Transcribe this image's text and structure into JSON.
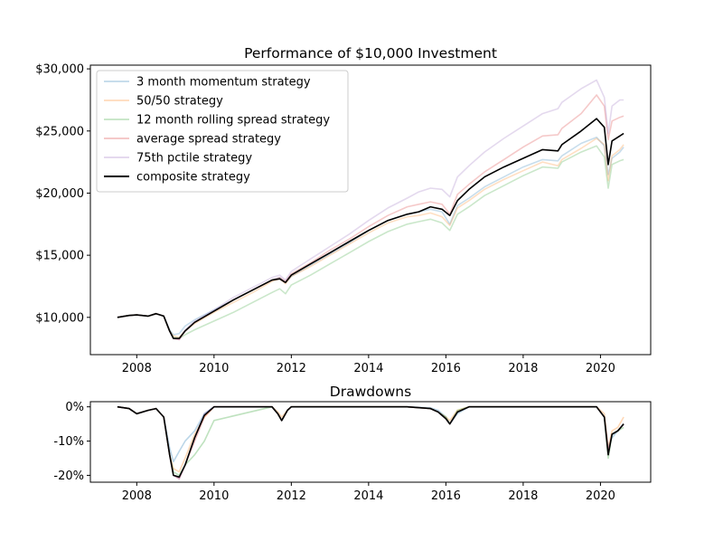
{
  "chart_data": [
    {
      "type": "line",
      "title": "Performance of $10,000 Investment",
      "xlabel": "",
      "ylabel": "",
      "xlim": [
        2006.8,
        2021.3
      ],
      "ylim": [
        7000,
        30300
      ],
      "x_ticks": [
        2008,
        2010,
        2012,
        2014,
        2016,
        2018,
        2020
      ],
      "x_tick_labels": [
        "2008",
        "2010",
        "2012",
        "2014",
        "2016",
        "2018",
        "2020"
      ],
      "y_ticks": [
        10000,
        15000,
        20000,
        25000,
        30000
      ],
      "y_tick_labels": [
        "$10,000",
        "$15,000",
        "$20,000",
        "$25,000",
        "$30,000"
      ],
      "grid": false,
      "legend_position": "top-left",
      "x": [
        2007.5,
        2007.8,
        2008.0,
        2008.3,
        2008.5,
        2008.7,
        2008.85,
        2008.95,
        2009.1,
        2009.25,
        2009.5,
        2010.0,
        2010.5,
        2011.0,
        2011.5,
        2011.7,
        2011.85,
        2012.0,
        2012.5,
        2013.0,
        2013.5,
        2014.0,
        2014.5,
        2015.0,
        2015.3,
        2015.6,
        2015.9,
        2016.1,
        2016.3,
        2016.6,
        2017.0,
        2017.5,
        2018.0,
        2018.5,
        2018.9,
        2019.0,
        2019.5,
        2019.9,
        2020.1,
        2020.2,
        2020.3,
        2020.5,
        2020.6
      ],
      "series": [
        {
          "name": "3 month momentum strategy",
          "color": "#1f77b4",
          "values": [
            10000,
            10150,
            10200,
            10100,
            10300,
            10100,
            9000,
            8600,
            8700,
            9300,
            9800,
            10600,
            11400,
            12200,
            13000,
            13200,
            12800,
            13300,
            14200,
            15100,
            16000,
            17000,
            17800,
            18300,
            18500,
            18700,
            18500,
            17500,
            19000,
            19600,
            20500,
            21300,
            22100,
            22700,
            22600,
            23000,
            24000,
            24500,
            23800,
            21500,
            22800,
            23300,
            23700
          ]
        },
        {
          "name": "50/50 strategy",
          "color": "#ff7f0e",
          "values": [
            10000,
            10150,
            10200,
            10100,
            10300,
            10100,
            8900,
            8500,
            8400,
            8900,
            9500,
            10400,
            11200,
            12000,
            12900,
            13100,
            12700,
            13300,
            14100,
            15000,
            15900,
            16800,
            17600,
            18100,
            18200,
            18400,
            18100,
            17400,
            18800,
            19400,
            20300,
            21100,
            21800,
            22500,
            22200,
            22700,
            23600,
            24400,
            23900,
            21000,
            23000,
            23500,
            23900
          ]
        },
        {
          "name": "12 month rolling spread strategy",
          "color": "#2ca02c",
          "values": [
            10000,
            10150,
            10200,
            10100,
            10300,
            10100,
            8900,
            8400,
            8300,
            8600,
            9000,
            9700,
            10400,
            11200,
            12000,
            12300,
            11900,
            12600,
            13400,
            14300,
            15200,
            16100,
            16900,
            17500,
            17700,
            17900,
            17600,
            17000,
            18300,
            18900,
            19800,
            20600,
            21400,
            22100,
            22000,
            22500,
            23300,
            23800,
            22900,
            20400,
            22300,
            22600,
            22700
          ]
        },
        {
          "name": "average spread strategy",
          "color": "#d62728",
          "values": [
            10000,
            10150,
            10200,
            10100,
            10300,
            10100,
            8900,
            8300,
            8200,
            8900,
            9600,
            10500,
            11400,
            12200,
            13000,
            13200,
            12900,
            13500,
            14400,
            15400,
            16300,
            17300,
            18200,
            18900,
            19100,
            19300,
            19100,
            18300,
            19900,
            20700,
            21700,
            22700,
            23700,
            24600,
            24700,
            25200,
            26400,
            27900,
            27000,
            24300,
            25800,
            26100,
            26200
          ]
        },
        {
          "name": "75th pctile strategy",
          "color": "#9467bd",
          "values": [
            10000,
            10150,
            10200,
            10100,
            10300,
            10100,
            8900,
            8300,
            8200,
            9000,
            9700,
            10600,
            11600,
            12400,
            13200,
            13400,
            13000,
            13700,
            14700,
            15700,
            16700,
            17800,
            18800,
            19600,
            20100,
            20400,
            20300,
            19700,
            21300,
            22200,
            23300,
            24400,
            25400,
            26400,
            26800,
            27300,
            28400,
            29100,
            27700,
            24800,
            27000,
            27500,
            27500
          ]
        },
        {
          "name": "composite strategy",
          "color": "#000000",
          "values": [
            10000,
            10150,
            10200,
            10100,
            10300,
            10100,
            8900,
            8300,
            8300,
            8900,
            9600,
            10500,
            11400,
            12200,
            13000,
            13100,
            12800,
            13400,
            14300,
            15200,
            16100,
            17000,
            17800,
            18300,
            18500,
            18900,
            18700,
            18200,
            19400,
            20300,
            21300,
            22100,
            22800,
            23500,
            23400,
            23900,
            25000,
            26000,
            25300,
            22300,
            24200,
            24600,
            24800
          ]
        }
      ]
    },
    {
      "type": "line",
      "title": "Drawdowns",
      "xlabel": "",
      "ylabel": "",
      "xlim": [
        2006.8,
        2021.3
      ],
      "ylim": [
        -22,
        1.5
      ],
      "x_ticks": [
        2008,
        2010,
        2012,
        2014,
        2016,
        2018,
        2020
      ],
      "x_tick_labels": [
        "2008",
        "2010",
        "2012",
        "2014",
        "2016",
        "2018",
        "2020"
      ],
      "y_ticks": [
        0,
        -10,
        -20
      ],
      "y_tick_labels": [
        "0%",
        "-10%",
        "-20%"
      ],
      "grid": false,
      "x": [
        2007.5,
        2007.8,
        2008.0,
        2008.3,
        2008.5,
        2008.7,
        2008.85,
        2008.95,
        2009.1,
        2009.25,
        2009.5,
        2009.75,
        2010.0,
        2011.5,
        2011.65,
        2011.75,
        2011.9,
        2012.0,
        2013.0,
        2014.0,
        2015.0,
        2015.6,
        2015.8,
        2016.0,
        2016.1,
        2016.3,
        2016.6,
        2017.0,
        2018.0,
        2019.0,
        2019.5,
        2019.9,
        2020.1,
        2020.2,
        2020.3,
        2020.45,
        2020.6
      ],
      "series": [
        {
          "name": "3 month momentum strategy",
          "color": "#1f77b4",
          "values": [
            0,
            -0.5,
            -2,
            -1,
            -0.5,
            -3,
            -12,
            -16,
            -13,
            -10,
            -7,
            -2,
            0,
            0,
            -2,
            -4,
            -1,
            0,
            0,
            0,
            0,
            -0.3,
            -1,
            -3,
            -5,
            -2,
            0,
            0,
            0,
            0,
            0,
            0,
            -3,
            -12,
            -9,
            -7,
            -5
          ]
        },
        {
          "name": "50/50 strategy",
          "color": "#ff7f0e",
          "values": [
            0,
            -0.5,
            -2,
            -1,
            -0.5,
            -3,
            -14,
            -18,
            -19,
            -15,
            -8,
            -3,
            0,
            0,
            -1.5,
            -3,
            -1,
            0,
            0,
            0,
            0,
            -0.5,
            -1.5,
            -3,
            -4,
            -1,
            0,
            0,
            0,
            0,
            0,
            0,
            -2,
            -12,
            -7,
            -6,
            -3
          ]
        },
        {
          "name": "12 month rolling spread strategy",
          "color": "#2ca02c",
          "values": [
            0,
            -0.5,
            -2,
            -1,
            -0.5,
            -3,
            -14,
            -19,
            -20,
            -17,
            -14,
            -10,
            -4,
            0,
            -2,
            -4,
            -1,
            0,
            0,
            0,
            0,
            -0.5,
            -1.5,
            -3,
            -5,
            -1,
            0,
            0,
            0,
            0,
            0,
            0,
            -3,
            -15,
            -8,
            -7,
            -6
          ]
        },
        {
          "name": "average spread strategy",
          "color": "#d62728",
          "values": [
            0,
            -0.5,
            -2,
            -1,
            -0.5,
            -3,
            -14,
            -20,
            -21,
            -17,
            -10,
            -3,
            0,
            0,
            -2,
            -4,
            -1,
            0,
            0,
            0,
            0,
            -0.5,
            -1.5,
            -3.5,
            -5,
            -1.5,
            0,
            0,
            0,
            0,
            0,
            0,
            -3,
            -13,
            -8,
            -7,
            -5
          ]
        },
        {
          "name": "75th pctile strategy",
          "color": "#9467bd",
          "values": [
            0,
            -0.5,
            -2,
            -1,
            -0.5,
            -3,
            -14,
            -20,
            -21,
            -17,
            -9,
            -2,
            0,
            0,
            -2,
            -4,
            -1,
            0,
            0,
            0,
            0,
            -0.5,
            -1.5,
            -3.5,
            -5,
            -1.5,
            0,
            0,
            0,
            0,
            0,
            0,
            -3,
            -13,
            -8,
            -7,
            -5
          ]
        },
        {
          "name": "composite strategy",
          "color": "#000000",
          "values": [
            0,
            -0.5,
            -2,
            -1,
            -0.5,
            -3,
            -14,
            -20,
            -20.5,
            -17,
            -9,
            -2.5,
            0,
            0,
            -2,
            -4,
            -1,
            0,
            0,
            0,
            0,
            -0.5,
            -1.5,
            -3.5,
            -5,
            -1.5,
            0,
            0,
            0,
            0,
            0,
            0,
            -3,
            -14,
            -8,
            -7,
            -5
          ]
        }
      ]
    }
  ]
}
